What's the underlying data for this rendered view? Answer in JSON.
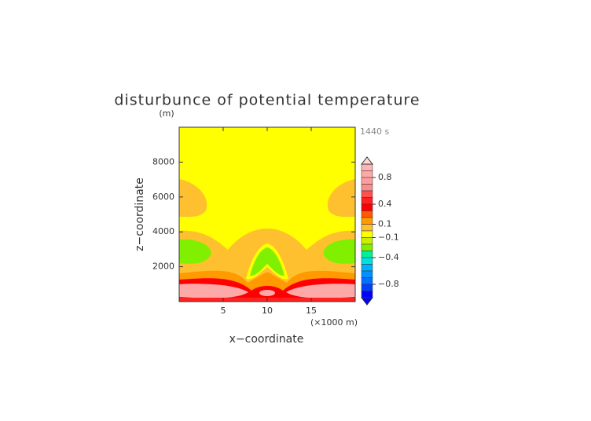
{
  "chart_data": {
    "type": "contour",
    "title": "disturbunce of potential temperature",
    "y_unit": "(m)",
    "time_label": "1440 s",
    "x_unit": "(×1000 m)",
    "xlabel": "x−coordinate",
    "ylabel": "z−coordinate",
    "xlim": [
      0,
      20
    ],
    "xticks": [
      5,
      10,
      15
    ],
    "ylim": [
      0,
      10000
    ],
    "yticks": [
      2000,
      4000,
      6000,
      8000
    ],
    "colorbar": {
      "levels": [
        1.0,
        0.9,
        0.8,
        0.7,
        0.6,
        0.5,
        0.4,
        0.3,
        0.2,
        0.1,
        0.0,
        -0.1,
        -0.2,
        -0.3,
        -0.4,
        -0.5,
        -0.6,
        -0.7,
        -0.8,
        -0.9,
        -1.0
      ],
      "colors": [
        "#ffb4b4",
        "#ffa8a8",
        "#ff9c9c",
        "#ff8c8c",
        "#ff5050",
        "#ff2020",
        "#ff0000",
        "#ff5a00",
        "#ff9a00",
        "#ffc030",
        "#ffff00",
        "#c8f000",
        "#80f000",
        "#00f0a0",
        "#00e0e0",
        "#00b0ff",
        "#0090ff",
        "#0070ff",
        "#0040ff",
        "#0000ff"
      ],
      "over_color": "#ffd8d8",
      "under_color": "#0000ff",
      "ticks": [
        0.8,
        0.4,
        0.1,
        {
          "value": -0.1,
          "label": "−0.1"
        },
        {
          "value": -0.4,
          "label": "−0.4"
        },
        {
          "value": -0.8,
          "label": "−0.8"
        }
      ]
    }
  }
}
